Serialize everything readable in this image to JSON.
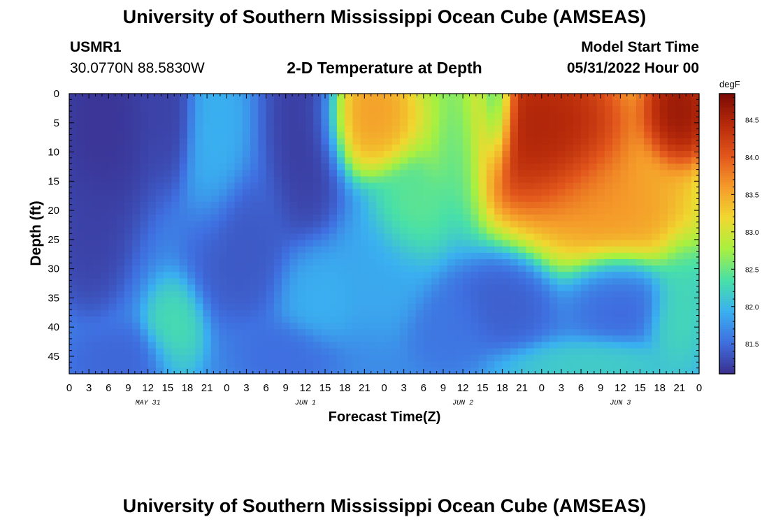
{
  "title": "University of Southern Mississippi Ocean Cube (AMSEAS)",
  "station": {
    "id": "USMR1",
    "coords": "30.0770N  88.5830W"
  },
  "subtitle": "2-D Temperature at Depth",
  "model_start": {
    "label": "Model Start Time",
    "value": "05/31/2022 Hour 00"
  },
  "colorbar": {
    "unit": "degF",
    "ticks": [
      "84.5",
      "84.0",
      "83.5",
      "83.0",
      "82.5",
      "82.0",
      "81.5"
    ],
    "colors": [
      "#3a2f8f",
      "#3f6fe0",
      "#3ab0f0",
      "#48e0a8",
      "#a8f040",
      "#f0d830",
      "#f59b2a",
      "#e2561c",
      "#b72a0a",
      "#7a0a05"
    ]
  },
  "bottom_title": "University of Southern Mississippi Ocean Cube (AMSEAS)",
  "chart_data": {
    "type": "heatmap",
    "title": "2-D Temperature at Depth",
    "xlabel": "Forecast Time(Z)",
    "ylabel": "Depth (ft)",
    "x_ticks": [
      "0",
      "3",
      "6",
      "9",
      "12",
      "15",
      "18",
      "21",
      "0",
      "3",
      "6",
      "9",
      "12",
      "15",
      "18",
      "21",
      "0",
      "3",
      "6",
      "9",
      "12",
      "15",
      "18",
      "21",
      "0",
      "3",
      "6",
      "9",
      "12",
      "15",
      "18",
      "21",
      "0"
    ],
    "date_labels": [
      "MAY 31",
      "JUN 1",
      "JUN 2",
      "JUN 3"
    ],
    "y_ticks": [
      "0",
      "5",
      "10",
      "15",
      "20",
      "25",
      "30",
      "35",
      "40",
      "45"
    ],
    "xlim_hours": [
      0,
      96
    ],
    "ylim_ft": [
      0,
      48
    ],
    "zlim_degF": [
      81.1,
      84.85
    ],
    "z_unit": "degF",
    "features": [
      {
        "hour": 5,
        "depth": 5,
        "value": 81.1,
        "sx": 6,
        "sy": 14
      },
      {
        "hour": 3,
        "depth": 25,
        "value": 81.2,
        "sx": 4,
        "sy": 8
      },
      {
        "hour": 22,
        "depth": 5,
        "value": 81.95,
        "sx": 3,
        "sy": 12
      },
      {
        "hour": 15,
        "depth": 2,
        "value": 81.2,
        "sx": 3,
        "sy": 9
      },
      {
        "hour": 36,
        "depth": 4,
        "value": 81.15,
        "sx": 4,
        "sy": 15
      },
      {
        "hour": 26,
        "depth": 27,
        "value": 81.35,
        "sx": 5,
        "sy": 8
      },
      {
        "hour": 16,
        "depth": 41,
        "value": 82.35,
        "sx": 3,
        "sy": 6
      },
      {
        "hour": 38,
        "depth": 34,
        "value": 81.95,
        "sx": 4,
        "sy": 6
      },
      {
        "hour": 46,
        "depth": 3,
        "value": 83.7,
        "sx": 5,
        "sy": 7
      },
      {
        "hour": 52,
        "depth": 21,
        "value": 82.5,
        "sx": 4,
        "sy": 6
      },
      {
        "hour": 60,
        "depth": 8,
        "value": 82.2,
        "sx": 3,
        "sy": 10
      },
      {
        "hour": 65,
        "depth": 2,
        "value": 81.7,
        "sx": 2,
        "sy": 8
      },
      {
        "hour": 66,
        "depth": 36,
        "value": 81.4,
        "sx": 5,
        "sy": 5
      },
      {
        "hour": 58,
        "depth": 40,
        "value": 81.55,
        "sx": 4,
        "sy": 5
      },
      {
        "hour": 72,
        "depth": 6,
        "value": 84.7,
        "sx": 10,
        "sy": 11
      },
      {
        "hour": 84,
        "depth": 20,
        "value": 83.7,
        "sx": 9,
        "sy": 8
      },
      {
        "hour": 93,
        "depth": 3,
        "value": 84.85,
        "sx": 4,
        "sy": 7
      },
      {
        "hour": 80,
        "depth": 47,
        "value": 82.2,
        "sx": 9,
        "sy": 3
      },
      {
        "hour": 84,
        "depth": 34,
        "value": 81.45,
        "sx": 5,
        "sy": 5
      },
      {
        "hour": 93,
        "depth": 36,
        "value": 82.3,
        "sx": 3,
        "sy": 8
      },
      {
        "hour": 33,
        "depth": 45,
        "value": 81.5,
        "sx": 5,
        "sy": 4
      },
      {
        "hour": 8,
        "depth": 46,
        "value": 81.45,
        "sx": 6,
        "sy": 4
      },
      {
        "hour": 48,
        "depth": 30,
        "value": 81.9,
        "sx": 5,
        "sy": 7
      }
    ],
    "background_value": 81.7
  }
}
